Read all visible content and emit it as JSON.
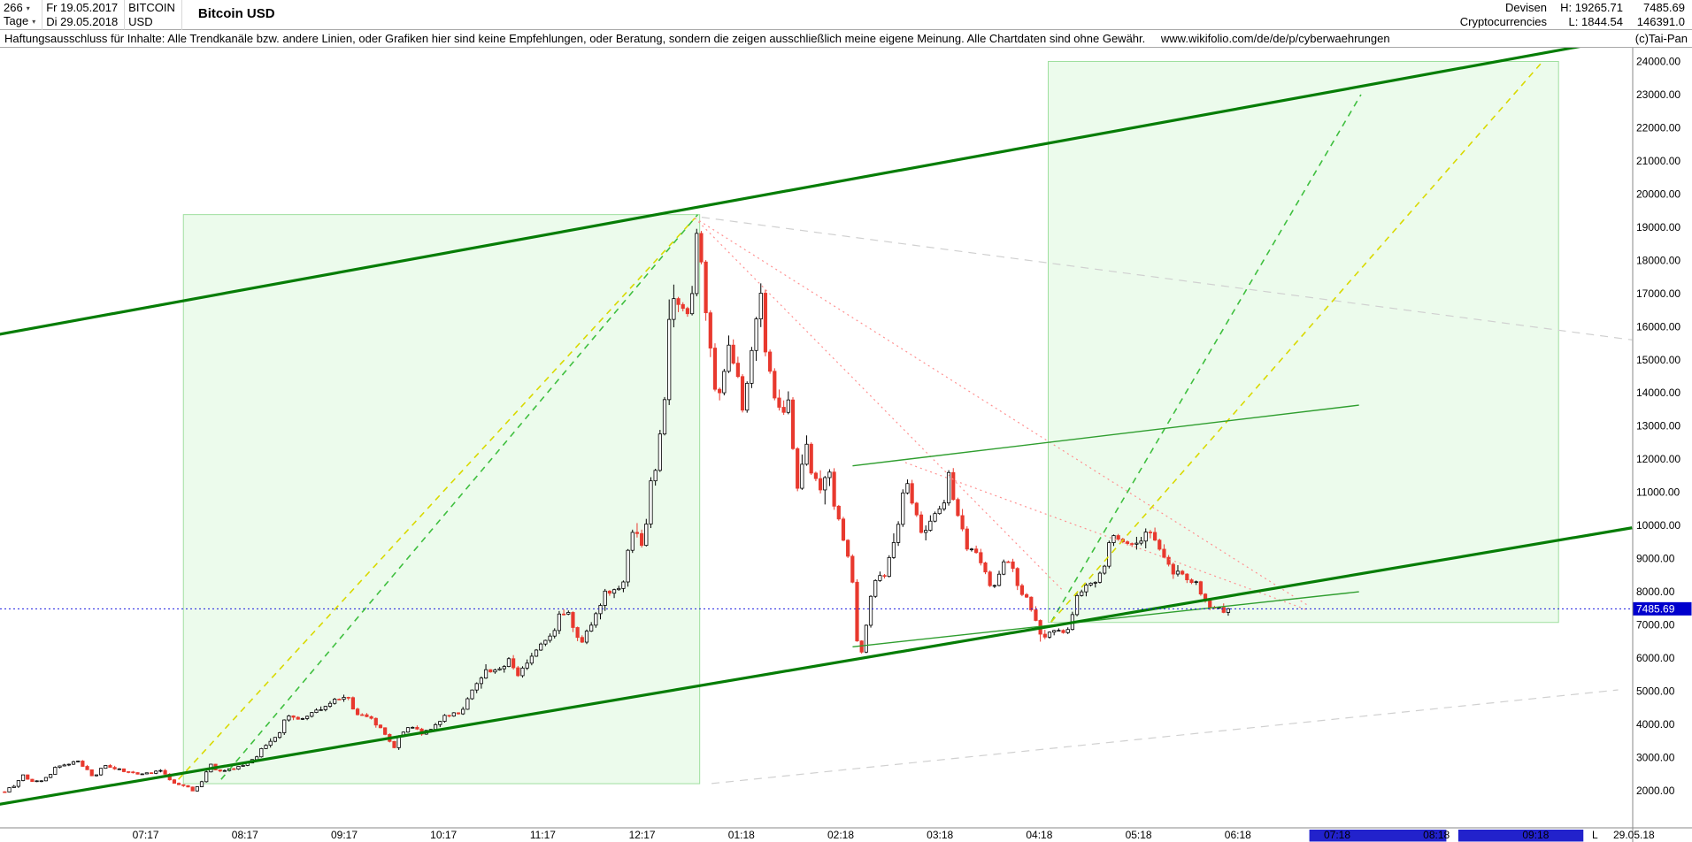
{
  "icons": {
    "chevron_down": "▾"
  },
  "header": {
    "bars_count": "266",
    "period": "Tage",
    "start_date": "Fr 19.05.2017",
    "end_date": "Di 29.05.2018",
    "symbol": "BITCOIN",
    "currency": "USD",
    "title": "Bitcoin USD",
    "category": "Devisen",
    "subcategory": "Cryptocurrencies",
    "high": "H: 19265.71",
    "low": "L: 1844.54",
    "last": "7485.69",
    "value2": "146391.0"
  },
  "disclaimer": {
    "text": "Haftungsausschluss für Inhalte: Alle Trendkanäle bzw. andere Linien, oder Grafiken hier sind keine Empfehlungen, oder Beratung, sondern die zeigen ausschließlich meine eigene Meinung. Alle Chartdaten sind ohne Gewähr.",
    "url": "www.wikifolio.com/de/de/p/cyberwaehrungen",
    "copyright": "(c)Tai-Pan"
  },
  "chart_data": {
    "type": "candlestick",
    "title": "Bitcoin USD",
    "symbol": "BITCOIN",
    "quote_currency": "USD",
    "period": "Tage",
    "visible_bars": 266,
    "range_start": "2017-05-19",
    "range_end": "2018-05-29",
    "high": 19265.71,
    "low": 1844.54,
    "last": 7485.69,
    "y_axis": {
      "max_label": 24000,
      "min_label": 2000,
      "step": 1000
    },
    "x_ticks": [
      {
        "label": "07:17",
        "m": 0
      },
      {
        "label": "08:17",
        "m": 1
      },
      {
        "label": "09:17",
        "m": 2
      },
      {
        "label": "10:17",
        "m": 3
      },
      {
        "label": "11:17",
        "m": 4
      },
      {
        "label": "12:17",
        "m": 5
      },
      {
        "label": "01:18",
        "m": 6
      },
      {
        "label": "02:18",
        "m": 7
      },
      {
        "label": "03:18",
        "m": 8
      },
      {
        "label": "04:18",
        "m": 9
      },
      {
        "label": "05:18",
        "m": 10
      },
      {
        "label": "06:18",
        "m": 11
      },
      {
        "label": "07:18",
        "m": 12
      },
      {
        "label": "08:18",
        "m": 13
      },
      {
        "label": "09:18",
        "m": 14
      }
    ],
    "last_date_label": {
      "label": "L",
      "value": "29.05.18"
    },
    "current_price_line": 7485.69,
    "price_path": [
      [
        0,
        1960
      ],
      [
        4,
        2120
      ],
      [
        6,
        2500
      ],
      [
        8,
        2180
      ],
      [
        12,
        2320
      ],
      [
        18,
        2760
      ],
      [
        24,
        2920
      ],
      [
        27,
        2450
      ],
      [
        32,
        2730
      ],
      [
        38,
        2560
      ],
      [
        43,
        2480
      ],
      [
        48,
        2590
      ],
      [
        53,
        2240
      ],
      [
        59,
        1990
      ],
      [
        61,
        2290
      ],
      [
        63,
        2820
      ],
      [
        67,
        2590
      ],
      [
        74,
        2760
      ],
      [
        81,
        3380
      ],
      [
        88,
        4250
      ],
      [
        92,
        4090
      ],
      [
        95,
        4390
      ],
      [
        99,
        4600
      ],
      [
        105,
        4850
      ],
      [
        109,
        4310
      ],
      [
        112,
        4210
      ],
      [
        116,
        3880
      ],
      [
        119,
        3260
      ],
      [
        124,
        3930
      ],
      [
        129,
        3680
      ],
      [
        134,
        4210
      ],
      [
        139,
        4360
      ],
      [
        143,
        4830
      ],
      [
        147,
        5640
      ],
      [
        151,
        5590
      ],
      [
        155,
        6030
      ],
      [
        158,
        5530
      ],
      [
        162,
        6160
      ],
      [
        166,
        6460
      ],
      [
        171,
        7260
      ],
      [
        173,
        7390
      ],
      [
        175,
        6560
      ],
      [
        177,
        5890
      ],
      [
        178,
        6510
      ],
      [
        183,
        7800
      ],
      [
        186,
        8040
      ],
      [
        190,
        8260
      ],
      [
        193,
        9880
      ],
      [
        195,
        9470
      ],
      [
        198,
        11210
      ],
      [
        200,
        11710
      ],
      [
        202,
        13720
      ],
      [
        203,
        16210
      ],
      [
        205,
        15010
      ],
      [
        206,
        16710
      ],
      [
        209,
        16320
      ],
      [
        211,
        17610
      ],
      [
        213,
        19020
      ],
      [
        215,
        16510
      ],
      [
        217,
        14010
      ],
      [
        220,
        14110
      ],
      [
        222,
        15510
      ],
      [
        224,
        14410
      ],
      [
        227,
        13410
      ],
      [
        229,
        15110
      ],
      [
        231,
        17010
      ],
      [
        234,
        15210
      ],
      [
        237,
        13410
      ],
      [
        241,
        13710
      ],
      [
        243,
        11210
      ],
      [
        246,
        12910
      ],
      [
        248,
        11610
      ],
      [
        250,
        11110
      ],
      [
        253,
        11810
      ],
      [
        256,
        10110
      ],
      [
        258,
        9060
      ],
      [
        261,
        6910
      ],
      [
        263,
        6210
      ],
      [
        265,
        7910
      ],
      [
        267,
        8610
      ],
      [
        270,
        8560
      ],
      [
        273,
        10110
      ],
      [
        277,
        11260
      ],
      [
        280,
        9860
      ],
      [
        282,
        9610
      ],
      [
        285,
        10310
      ],
      [
        288,
        10960
      ],
      [
        290,
        11460
      ],
      [
        294,
        9260
      ],
      [
        296,
        9510
      ],
      [
        298,
        9160
      ],
      [
        301,
        8260
      ],
      [
        303,
        7860
      ],
      [
        306,
        8960
      ],
      [
        309,
        8560
      ],
      [
        313,
        7810
      ],
      [
        315,
        7060
      ],
      [
        318,
        6660
      ],
      [
        322,
        6790
      ],
      [
        326,
        6800
      ],
      [
        328,
        7890
      ],
      [
        331,
        7990
      ],
      [
        334,
        8360
      ],
      [
        336,
        8810
      ],
      [
        340,
        9640
      ],
      [
        343,
        9360
      ],
      [
        346,
        9410
      ],
      [
        349,
        9760
      ],
      [
        351,
        9840
      ],
      [
        354,
        9310
      ],
      [
        357,
        8460
      ],
      [
        360,
        8690
      ],
      [
        363,
        8260
      ],
      [
        366,
        8210
      ],
      [
        369,
        7560
      ],
      [
        371,
        7460
      ],
      [
        374,
        7310
      ],
      [
        375,
        7485.69
      ]
    ],
    "annotations": {
      "boxes": [
        {
          "name": "rally-2017-zone",
          "m1": 0.38,
          "m2": 5.58,
          "p1": 2210,
          "p2": 19380
        },
        {
          "name": "projection-2018-zone",
          "m1": 9.09,
          "m2": 14.23,
          "p1": 7075,
          "p2": 24000
        }
      ],
      "lines": [
        {
          "name": "gray-guide-upper",
          "m1": 5.6,
          "p1": 19300,
          "m2": 14.97,
          "p2": 15600,
          "color": "#d0d0d0",
          "width": 1.2,
          "dash": "9,7",
          "behind": true
        },
        {
          "name": "gray-guide-lower",
          "m1": 5.7,
          "p1": 2215,
          "m2": 14.83,
          "p2": 5040,
          "color": "#d0d0d0",
          "width": 1.2,
          "dash": "9,7",
          "behind": true
        },
        {
          "name": "rally-trend-yellow",
          "m1": 0.33,
          "p1": 2340,
          "m2": 5.53,
          "p2": 19270,
          "color": "#d9d900",
          "width": 1.6,
          "dash": "7,6"
        },
        {
          "name": "rally-trend-green",
          "m1": 0.76,
          "p1": 2340,
          "m2": 5.56,
          "p2": 19380,
          "color": "#3fbf3f",
          "width": 1.6,
          "dash": "7,6"
        },
        {
          "name": "projection-green",
          "m1": 9.12,
          "p1": 7090,
          "m2": 12.24,
          "p2": 23000,
          "color": "#3fbf3f",
          "width": 1.6,
          "dash": "7,6"
        },
        {
          "name": "projection-yellow",
          "m1": 9.12,
          "p1": 7090,
          "m2": 14.07,
          "p2": 24000,
          "color": "#d9d900",
          "width": 1.6,
          "dash": "7,6"
        },
        {
          "name": "downtrend-red-steep",
          "m1": 5.53,
          "p1": 19280,
          "m2": 9.25,
          "p2": 8000,
          "color": "#ff9090",
          "width": 1.2,
          "dash": "2,4"
        },
        {
          "name": "downtrend-red-shallow",
          "m1": 5.53,
          "p1": 19280,
          "m2": 11.7,
          "p2": 7600,
          "color": "#ff9090",
          "width": 1.2,
          "dash": "2,4"
        },
        {
          "name": "downtrend-red-feb",
          "m1": 7.65,
          "p1": 11900,
          "m2": 11.7,
          "p2": 7450,
          "color": "#ff9090",
          "width": 1.2,
          "dash": "2,4"
        },
        {
          "name": "resistance-feb-mar",
          "m1": 7.12,
          "p1": 11800,
          "m2": 12.22,
          "p2": 13630,
          "color": "#2f9e2f",
          "width": 1.4
        },
        {
          "name": "minor-support",
          "m1": 7.12,
          "p1": 6340,
          "m2": 12.22,
          "p2": 8000,
          "color": "#2f9e2f",
          "width": 1.4
        },
        {
          "name": "upper-channel",
          "m1": -1.47,
          "p1": 15770,
          "m2": 14.97,
          "p2": 24740,
          "color": "#067d06",
          "width": 3.2
        },
        {
          "name": "lower-channel",
          "m1": -1.47,
          "p1": 1590,
          "m2": 14.97,
          "p2": 9930,
          "color": "#067d06",
          "width": 3.2
        }
      ]
    },
    "future_shading": [
      {
        "from_m": 11.72,
        "to_m": 13.1
      },
      {
        "from_m": 13.22,
        "to_m": 14.48
      }
    ],
    "colors": {
      "up_fill": "#ffffff",
      "up_border": "#000000",
      "down": "#e8392e",
      "channel": "#067d06",
      "trend_solid": "#2f9e2f",
      "dashed_green": "#3fbf3f",
      "dashed_yellow": "#d9d900",
      "dotted_red": "#ff9090",
      "dashed_gray": "#d0d0d0",
      "current_price": "#1a1ae0",
      "label_bg": "#0000cd",
      "box_fill": "#e7fae7",
      "box_border": "#9fdf9f",
      "future_bar": "#2222cc",
      "axis_line": "#888888",
      "text": "#000000"
    }
  }
}
